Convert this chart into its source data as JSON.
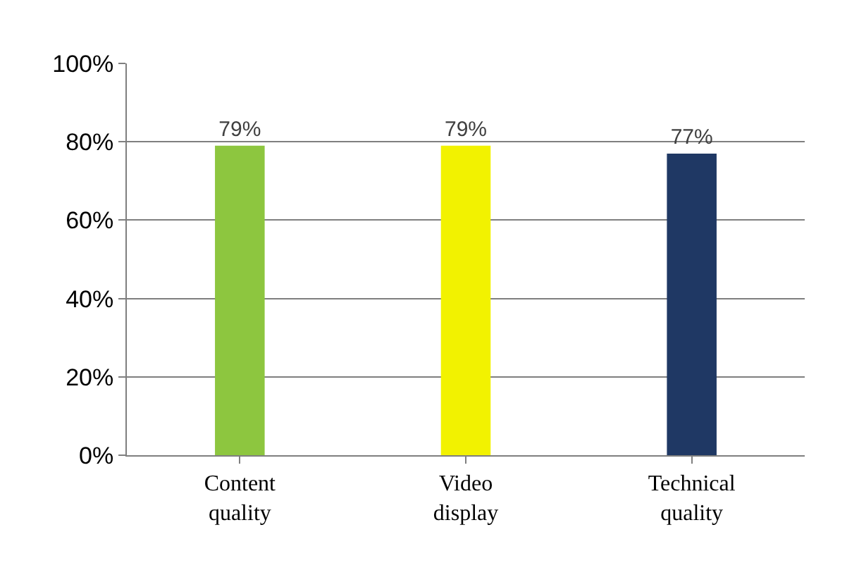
{
  "chart_data": {
    "type": "bar",
    "categories": [
      "Content quality",
      "Video display",
      "Technical quality"
    ],
    "values": [
      79,
      79,
      77
    ],
    "colors": [
      "#8dc63f",
      "#f2f200",
      "#1f3864"
    ],
    "value_labels": [
      "79%",
      "79%",
      "77%"
    ],
    "ylim": [
      0,
      100
    ],
    "yticks": [
      {
        "value": 0,
        "label": "0%"
      },
      {
        "value": 20,
        "label": "20%"
      },
      {
        "value": 40,
        "label": "40%"
      },
      {
        "value": 60,
        "label": "60%"
      },
      {
        "value": 80,
        "label": "80%"
      },
      {
        "value": 100,
        "label": "100%"
      }
    ],
    "grid": "y"
  }
}
